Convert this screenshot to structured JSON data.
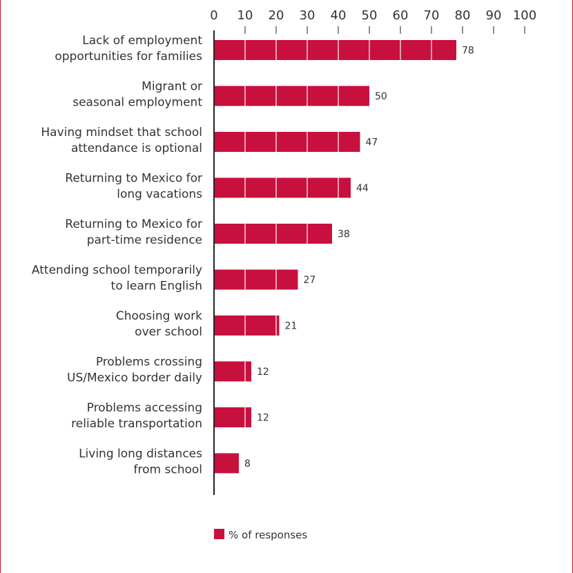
{
  "chart_data": {
    "type": "bar",
    "orientation": "horizontal",
    "categories": [
      [
        "Lack of employment",
        "opportunities for families"
      ],
      [
        "Migrant or",
        "seasonal employment"
      ],
      [
        "Having mindset that school",
        "attendance is optional"
      ],
      [
        "Returning to Mexico for",
        "long vacations"
      ],
      [
        "Returning to Mexico for",
        "part-time residence"
      ],
      [
        "Attending school temporarily",
        "to learn English"
      ],
      [
        "Choosing work",
        "over school"
      ],
      [
        "Problems crossing",
        "US/Mexico border daily"
      ],
      [
        "Problems accessing",
        "reliable transportation"
      ],
      [
        "Living long distances",
        "from school"
      ]
    ],
    "series": [
      {
        "name": "% of responses",
        "values": [
          78,
          50,
          47,
          44,
          38,
          27,
          21,
          12,
          12,
          8
        ],
        "color": "#c8103e"
      }
    ],
    "x_ticks": [
      "0",
      "10",
      "20",
      "30",
      "40",
      "50",
      "60",
      "70",
      "80",
      "90",
      "100"
    ],
    "xlim": [
      0,
      100
    ],
    "axis_position": "top",
    "grid": false,
    "legend_position": "bottom-center",
    "data_labels": true
  },
  "colors": {
    "bar": "#c8103e",
    "frame": "#c8102e",
    "text": "#333333",
    "axis": "#222222"
  }
}
